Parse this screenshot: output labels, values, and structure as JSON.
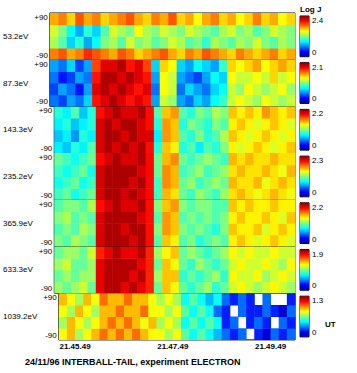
{
  "chart_data": {
    "type": "heatmap",
    "title": "24/11/96 INTERBALL-TAIL, experiment ELECTRON",
    "xlabel": "UT",
    "colorbar_label": "Log J",
    "grid": false,
    "x": [
      78334,
      78344,
      78354,
      78364,
      78374,
      78384,
      78394,
      78404,
      78414,
      78424,
      78434,
      78444,
      78454,
      78464,
      78474,
      78484,
      78494,
      78504,
      78514,
      78524,
      78534,
      78544,
      78554,
      78564,
      78574,
      78584,
      78594,
      78604,
      78614
    ],
    "xlim": [
      78329,
      78619
    ],
    "xticks": [
      {
        "value": 78349,
        "label": "21.45.49"
      },
      {
        "value": 78469,
        "label": "21.47.49"
      },
      {
        "value": 78589,
        "label": "21.49.49"
      }
    ],
    "y": [
      -67.5,
      -22.5,
      22.5,
      67.5
    ],
    "ylim": [
      -90,
      90
    ],
    "yticks": [
      {
        "value": 90,
        "label": "+90"
      },
      -90
    ],
    "panels": [
      {
        "name": "53.2eV",
        "colorbar_lim": [
          0,
          2.4
        ],
        "colorbar_ticks": [
          0,
          2.4
        ],
        "cells": [
          [
            1.8,
            1.9,
            1.7,
            1.8,
            2.0,
            1.9,
            1.8,
            1.7,
            1.9,
            1.8,
            1.6,
            1.7,
            1.8,
            1.9,
            1.7,
            1.6,
            1.8,
            1.7,
            1.9,
            1.8,
            1.7,
            1.6,
            1.8,
            1.7,
            1.6,
            1.7,
            1.8,
            1.6,
            1.7
          ],
          [
            1.3,
            1.1,
            0.8,
            1.0,
            0.7,
            0.9,
            1.2,
            1.3,
            1.1,
            1.4,
            1.2,
            1.3,
            1.1,
            1.2,
            1.4,
            1.3,
            1.1,
            1.2,
            1.0,
            1.3,
            1.2,
            1.1,
            1.3,
            1.2,
            1.4,
            1.2,
            1.1,
            1.3,
            1.2
          ],
          [
            1.4,
            1.2,
            0.9,
            0.7,
            1.0,
            0.8,
            1.1,
            1.4,
            1.3,
            1.2,
            1.5,
            1.3,
            1.2,
            1.4,
            1.3,
            1.2,
            1.4,
            1.3,
            1.2,
            1.1,
            1.3,
            1.4,
            1.2,
            1.3,
            1.1,
            1.2,
            1.4,
            1.3,
            1.2
          ],
          [
            1.7,
            1.8,
            1.6,
            1.9,
            1.7,
            1.8,
            1.6,
            1.7,
            1.8,
            1.9,
            1.7,
            1.6,
            1.8,
            1.7,
            1.9,
            1.6,
            1.7,
            1.5,
            1.7,
            1.8,
            1.6,
            1.7,
            1.5,
            1.6,
            1.8,
            1.6,
            1.7,
            1.5,
            1.6
          ]
        ]
      },
      {
        "name": "87.3eV",
        "colorbar_lim": [
          0,
          2.1
        ],
        "colorbar_ticks": [
          0,
          2.1
        ],
        "cells": [
          [
            0.5,
            0.4,
            0.6,
            0.5,
            0.7,
            1.8,
            1.9,
            2.0,
            1.9,
            1.8,
            1.9,
            1.8,
            0.6,
            1.2,
            1.1,
            0.6,
            0.5,
            0.7,
            0.6,
            0.8,
            0.9,
            1.2,
            1.3,
            1.2,
            1.1,
            1.3,
            1.2,
            1.1,
            1.2
          ],
          [
            0.4,
            0.6,
            0.5,
            0.3,
            0.6,
            1.9,
            2.0,
            1.9,
            2.0,
            1.9,
            1.8,
            1.9,
            0.5,
            1.3,
            1.2,
            0.5,
            0.7,
            0.6,
            0.5,
            0.7,
            0.8,
            1.2,
            1.1,
            1.3,
            1.2,
            1.1,
            1.2,
            1.3,
            1.1
          ],
          [
            0.5,
            0.3,
            0.4,
            0.6,
            0.5,
            1.8,
            2.0,
            2.0,
            1.9,
            2.0,
            1.9,
            1.8,
            0.6,
            1.3,
            1.2,
            0.6,
            0.5,
            0.4,
            0.6,
            0.8,
            0.7,
            1.3,
            1.2,
            1.2,
            1.3,
            1.2,
            1.4,
            1.2,
            1.3
          ],
          [
            0.6,
            0.5,
            0.7,
            0.4,
            0.6,
            1.7,
            1.9,
            1.9,
            2.0,
            1.8,
            1.9,
            1.7,
            0.7,
            1.4,
            1.3,
            0.7,
            0.6,
            0.8,
            0.7,
            0.6,
            0.9,
            1.4,
            1.3,
            1.4,
            1.5,
            1.3,
            1.4,
            1.5,
            1.4
          ]
        ]
      },
      {
        "name": "143.3eV",
        "colorbar_lim": [
          0,
          2.2
        ],
        "colorbar_ticks": [
          0,
          2.2
        ],
        "cells": [
          [
            0.8,
            0.7,
            0.9,
            0.8,
            1.0,
            2.0,
            2.1,
            2.0,
            2.1,
            2.0,
            2.1,
            1.9,
            0.9,
            1.5,
            1.4,
            0.9,
            1.0,
            0.8,
            1.0,
            0.9,
            1.1,
            1.4,
            1.3,
            1.4,
            1.5,
            1.4,
            1.3,
            1.4,
            1.5
          ],
          [
            0.7,
            0.8,
            0.6,
            0.9,
            0.8,
            2.0,
            2.1,
            2.1,
            2.0,
            2.1,
            2.0,
            2.0,
            0.8,
            1.6,
            1.5,
            1.0,
            0.9,
            1.1,
            0.9,
            1.0,
            1.2,
            1.5,
            1.4,
            1.3,
            1.4,
            1.5,
            1.4,
            1.3,
            1.4
          ],
          [
            0.8,
            0.9,
            0.7,
            0.8,
            0.9,
            2.0,
            2.1,
            2.0,
            2.1,
            2.1,
            2.0,
            1.9,
            0.9,
            1.6,
            1.5,
            0.9,
            1.1,
            1.0,
            0.9,
            1.1,
            1.0,
            1.4,
            1.5,
            1.4,
            1.3,
            1.4,
            1.5,
            1.4,
            1.3
          ],
          [
            0.9,
            0.8,
            1.0,
            0.7,
            0.9,
            1.9,
            2.0,
            2.1,
            2.0,
            2.0,
            2.1,
            1.9,
            1.0,
            1.5,
            1.6,
            1.0,
            0.9,
            1.1,
            1.0,
            1.2,
            1.1,
            1.5,
            1.4,
            1.5,
            1.4,
            1.6,
            1.5,
            1.4,
            1.5
          ]
        ]
      },
      {
        "name": "235.2eV",
        "colorbar_lim": [
          0,
          2.3
        ],
        "colorbar_ticks": [
          0,
          2.3
        ],
        "cells": [
          [
            1.0,
            1.1,
            0.9,
            1.0,
            1.1,
            2.1,
            2.2,
            2.2,
            2.1,
            2.2,
            2.1,
            2.0,
            1.0,
            1.6,
            1.5,
            1.1,
            1.0,
            1.2,
            1.1,
            1.0,
            1.2,
            1.5,
            1.6,
            1.5,
            1.4,
            1.5,
            1.6,
            1.5,
            1.4
          ],
          [
            0.9,
            1.0,
            1.1,
            0.9,
            1.0,
            2.1,
            2.2,
            2.2,
            2.2,
            2.1,
            2.2,
            2.0,
            1.0,
            1.7,
            1.6,
            1.1,
            1.2,
            1.0,
            1.1,
            1.2,
            1.1,
            1.6,
            1.5,
            1.5,
            1.6,
            1.4,
            1.5,
            1.6,
            1.5
          ],
          [
            1.0,
            0.9,
            1.0,
            1.1,
            0.9,
            2.1,
            2.2,
            2.2,
            2.2,
            2.2,
            2.1,
            2.0,
            1.1,
            1.7,
            1.6,
            1.0,
            1.1,
            1.2,
            1.0,
            1.1,
            1.2,
            1.5,
            1.6,
            1.5,
            1.5,
            1.6,
            1.5,
            1.4,
            1.6
          ],
          [
            1.1,
            1.0,
            0.9,
            1.0,
            1.1,
            2.0,
            2.1,
            2.2,
            2.1,
            2.1,
            2.2,
            2.0,
            1.1,
            1.6,
            1.7,
            1.1,
            1.0,
            1.1,
            1.2,
            1.1,
            1.0,
            1.6,
            1.5,
            1.6,
            1.5,
            1.5,
            1.6,
            1.5,
            1.5
          ]
        ]
      },
      {
        "name": "365.9eV",
        "colorbar_lim": [
          0,
          2.2
        ],
        "colorbar_ticks": [
          0,
          2.2
        ],
        "cells": [
          [
            1.1,
            1.0,
            1.2,
            1.1,
            1.0,
            2.0,
            2.1,
            2.1,
            2.1,
            2.0,
            2.1,
            1.9,
            1.0,
            1.5,
            1.4,
            1.0,
            1.1,
            0.9,
            1.0,
            1.1,
            1.0,
            1.4,
            1.5,
            1.4,
            1.3,
            1.4,
            1.5,
            1.4,
            1.3
          ],
          [
            1.0,
            1.1,
            1.0,
            1.2,
            1.1,
            2.0,
            2.1,
            2.1,
            2.0,
            2.1,
            2.1,
            1.9,
            1.1,
            1.6,
            1.5,
            1.1,
            1.0,
            1.1,
            1.0,
            0.9,
            1.1,
            1.5,
            1.4,
            1.4,
            1.5,
            1.3,
            1.4,
            1.5,
            1.4
          ],
          [
            1.1,
            1.2,
            1.0,
            1.1,
            1.0,
            2.0,
            2.1,
            2.1,
            2.1,
            2.1,
            2.0,
            1.9,
            1.0,
            1.6,
            1.5,
            1.0,
            1.1,
            1.0,
            1.1,
            1.0,
            1.1,
            1.4,
            1.5,
            1.4,
            1.4,
            1.5,
            1.4,
            1.3,
            1.5
          ],
          [
            1.0,
            1.1,
            1.1,
            1.0,
            1.2,
            1.9,
            2.0,
            2.1,
            2.0,
            2.0,
            2.1,
            1.9,
            1.1,
            1.5,
            1.6,
            1.1,
            1.0,
            1.1,
            1.1,
            1.0,
            1.0,
            1.5,
            1.4,
            1.5,
            1.4,
            1.4,
            1.5,
            1.4,
            1.4
          ]
        ]
      },
      {
        "name": "633.3eV",
        "colorbar_lim": [
          0,
          1.9
        ],
        "colorbar_ticks": [
          0,
          1.9
        ],
        "cells": [
          [
            1.0,
            0.9,
            1.0,
            1.1,
            0.9,
            1.7,
            1.8,
            1.8,
            1.7,
            1.8,
            1.7,
            1.6,
            0.9,
            1.3,
            1.2,
            0.9,
            0.8,
            0.9,
            1.0,
            0.8,
            0.9,
            1.1,
            1.2,
            1.1,
            1.0,
            1.1,
            1.2,
            1.1,
            1.0
          ],
          [
            0.9,
            1.0,
            0.9,
            1.0,
            1.0,
            1.7,
            1.8,
            1.8,
            1.8,
            1.7,
            1.8,
            1.6,
            1.0,
            1.3,
            1.3,
            0.8,
            0.9,
            0.8,
            0.9,
            1.0,
            0.8,
            1.2,
            1.1,
            1.1,
            1.2,
            1.0,
            1.1,
            1.2,
            1.1
          ],
          [
            1.0,
            1.1,
            0.9,
            0.9,
            1.0,
            1.7,
            1.8,
            1.8,
            1.8,
            1.8,
            1.7,
            1.6,
            0.9,
            1.3,
            1.2,
            0.9,
            0.8,
            1.0,
            0.9,
            0.8,
            0.9,
            1.1,
            1.2,
            1.1,
            1.1,
            1.2,
            1.1,
            1.0,
            1.2
          ],
          [
            0.9,
            1.0,
            1.0,
            0.9,
            1.1,
            1.6,
            1.7,
            1.8,
            1.7,
            1.7,
            1.8,
            1.6,
            1.0,
            1.2,
            1.3,
            0.9,
            1.0,
            0.9,
            0.8,
            0.9,
            1.0,
            1.2,
            1.1,
            1.2,
            1.1,
            1.1,
            1.2,
            1.1,
            1.1
          ]
        ]
      },
      {
        "name": "1039.2eV",
        "colorbar_lim": [
          0,
          1.3
        ],
        "colorbar_ticks": [
          0,
          1.3
        ],
        "cells": [
          [
            0.8,
            0.9,
            0.7,
            0.8,
            0.9,
            1.0,
            0.9,
            1.0,
            0.9,
            1.0,
            0.9,
            0.8,
            0.8,
            0.7,
            0.8,
            0.6,
            0.5,
            0.6,
            0.5,
            0.4,
            0.3,
            0.2,
            0.3,
            null,
            0.2,
            0.1,
            0.3,
            0.2,
            0.3
          ],
          [
            0.7,
            0.9,
            0.8,
            0.7,
            0.8,
            0.9,
            1.0,
            0.9,
            1.0,
            0.9,
            0.8,
            0.9,
            0.7,
            0.8,
            0.7,
            0.5,
            0.6,
            0.5,
            0.6,
            0.5,
            0.2,
            0.3,
            null,
            0.2,
            0.3,
            0.2,
            null,
            0.3,
            0.2
          ],
          [
            0.8,
            0.7,
            0.9,
            0.8,
            0.7,
            0.9,
            0.9,
            1.0,
            0.9,
            0.9,
            1.0,
            0.8,
            0.8,
            0.7,
            0.8,
            0.6,
            0.5,
            0.6,
            0.5,
            0.3,
            0.2,
            null,
            0.3,
            0.2,
            0.2,
            0.3,
            0.2,
            0.1,
            0.3
          ],
          [
            0.9,
            0.8,
            0.7,
            0.9,
            0.8,
            1.0,
            0.9,
            0.9,
            1.0,
            0.9,
            0.9,
            0.8,
            0.7,
            0.8,
            0.7,
            0.5,
            0.6,
            0.5,
            0.4,
            0.5,
            0.3,
            0.2,
            0.3,
            0.2,
            null,
            0.3,
            null,
            null,
            0.2
          ]
        ]
      }
    ]
  }
}
